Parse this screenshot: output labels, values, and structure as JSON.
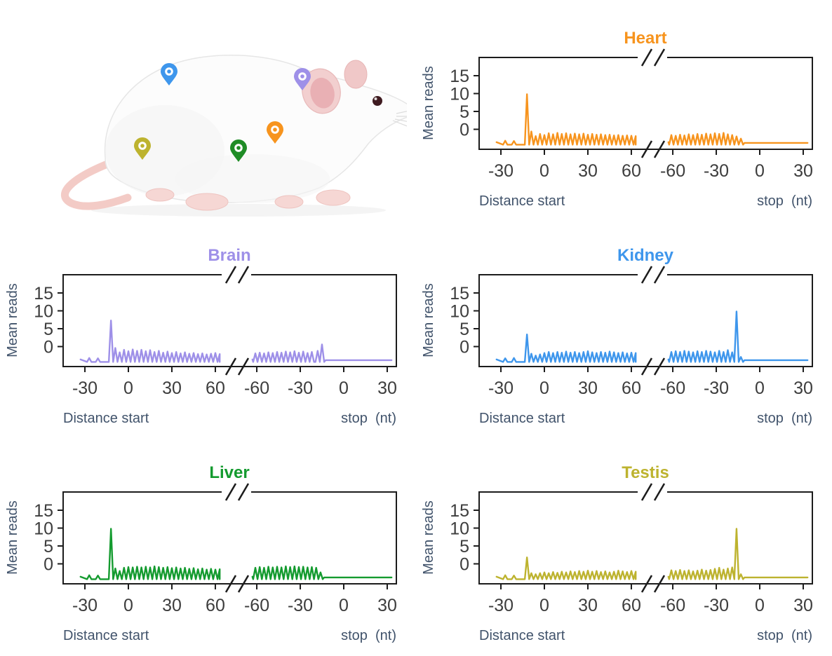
{
  "figure": {
    "description": "White rat with colored organ location pins",
    "pins": [
      {
        "organ": "Kidney",
        "color": "#3E96EC"
      },
      {
        "organ": "Brain",
        "color": "#9E90E8"
      },
      {
        "organ": "Heart",
        "color": "#F7941E"
      },
      {
        "organ": "Liver",
        "color": "#1F8C26"
      },
      {
        "organ": "Testis",
        "color": "#BDB32F"
      }
    ]
  },
  "axes": {
    "ylabel": "Mean reads",
    "yticks": [
      15,
      10,
      5,
      0
    ],
    "ylim": [
      -5.5,
      20
    ],
    "xlabel_left": "Distance start",
    "xlabel_right": "stop  (nt)",
    "panel_start": {
      "xticks": [
        -30,
        0,
        30,
        60
      ],
      "xrange": [
        -33,
        63
      ]
    },
    "panel_stop": {
      "xticks": [
        -60,
        -30,
        0,
        30
      ],
      "xrange": [
        -63,
        33
      ]
    },
    "grid": false
  },
  "chart_data": [
    {
      "id": "heart",
      "title": "Heart",
      "color": "#F7941E",
      "type": "line",
      "start": {
        "xrange": [
          -33,
          63
        ],
        "baseline": -3.6,
        "trough": -4.3,
        "tail": -3.8,
        "peaks": [
          [
            -27,
            -3.2
          ],
          [
            -21,
            -3.3
          ],
          [
            -12,
            9.8
          ],
          [
            -9,
            -0.6
          ],
          [
            -6,
            -1.9
          ],
          [
            -3,
            -1.3
          ],
          [
            0,
            -1.6
          ],
          [
            3,
            -1.1
          ],
          [
            6,
            -1.4
          ],
          [
            9,
            -1.0
          ],
          [
            12,
            -1.3
          ],
          [
            15,
            -1.1
          ],
          [
            18,
            -1.4
          ],
          [
            21,
            -1.2
          ],
          [
            24,
            -1.4
          ],
          [
            27,
            -1.2
          ],
          [
            30,
            -1.5
          ],
          [
            33,
            -1.3
          ],
          [
            36,
            -1.5
          ],
          [
            39,
            -1.4
          ],
          [
            42,
            -1.6
          ],
          [
            45,
            -1.5
          ],
          [
            48,
            -1.7
          ],
          [
            51,
            -1.6
          ],
          [
            54,
            -1.8
          ],
          [
            57,
            -1.7
          ],
          [
            60,
            -1.8
          ],
          [
            63,
            -1.9
          ]
        ]
      },
      "stop": {
        "xrange": [
          -63,
          33
        ],
        "baseline": -3.6,
        "trough": -4.3,
        "tail": -3.8,
        "peaks": [
          [
            -61,
            -1.6
          ],
          [
            -58,
            -1.8
          ],
          [
            -55,
            -1.5
          ],
          [
            -52,
            -1.7
          ],
          [
            -49,
            -1.4
          ],
          [
            -46,
            -1.6
          ],
          [
            -43,
            -1.3
          ],
          [
            -40,
            -1.5
          ],
          [
            -37,
            -1.2
          ],
          [
            -34,
            -1.4
          ],
          [
            -31,
            -1.1
          ],
          [
            -28,
            -1.3
          ],
          [
            -25,
            -1.0
          ],
          [
            -22,
            -1.4
          ],
          [
            -19,
            -1.6
          ],
          [
            -16,
            -2.0
          ],
          [
            -13,
            -2.6
          ]
        ]
      }
    },
    {
      "id": "brain",
      "title": "Brain",
      "color": "#9E90E8",
      "type": "line",
      "start": {
        "xrange": [
          -33,
          63
        ],
        "baseline": -3.6,
        "trough": -4.3,
        "tail": -3.8,
        "peaks": [
          [
            -27,
            -3.2
          ],
          [
            -21,
            -3.3
          ],
          [
            -12,
            7.3
          ],
          [
            -9,
            -0.4
          ],
          [
            -6,
            -1.6
          ],
          [
            -3,
            -0.9
          ],
          [
            0,
            -1.3
          ],
          [
            3,
            -0.8
          ],
          [
            6,
            -1.2
          ],
          [
            9,
            -0.9
          ],
          [
            12,
            -1.3
          ],
          [
            15,
            -1.0
          ],
          [
            18,
            -1.5
          ],
          [
            21,
            -1.2
          ],
          [
            24,
            -1.7
          ],
          [
            27,
            -1.4
          ],
          [
            30,
            -1.8
          ],
          [
            33,
            -1.5
          ],
          [
            36,
            -1.9
          ],
          [
            39,
            -1.6
          ],
          [
            42,
            -2.0
          ],
          [
            45,
            -1.8
          ],
          [
            48,
            -2.1
          ],
          [
            51,
            -1.9
          ],
          [
            54,
            -2.2
          ],
          [
            57,
            -2.0
          ],
          [
            60,
            -1.8
          ],
          [
            63,
            -2.1
          ]
        ]
      },
      "stop": {
        "xrange": [
          -63,
          33
        ],
        "baseline": -3.6,
        "trough": -4.3,
        "tail": -3.8,
        "peaks": [
          [
            -61,
            -1.9
          ],
          [
            -58,
            -1.7
          ],
          [
            -55,
            -1.9
          ],
          [
            -52,
            -1.6
          ],
          [
            -49,
            -1.8
          ],
          [
            -46,
            -1.5
          ],
          [
            -43,
            -1.7
          ],
          [
            -40,
            -1.4
          ],
          [
            -37,
            -1.6
          ],
          [
            -34,
            -1.3
          ],
          [
            -31,
            -1.7
          ],
          [
            -28,
            -1.4
          ],
          [
            -25,
            -1.8
          ],
          [
            -22,
            -1.5
          ],
          [
            -18,
            -1.2
          ],
          [
            -15,
            0.6
          ]
        ]
      }
    },
    {
      "id": "kidney",
      "title": "Kidney",
      "color": "#3E96EC",
      "type": "line",
      "start": {
        "xrange": [
          -33,
          63
        ],
        "baseline": -3.6,
        "trough": -4.3,
        "tail": -3.8,
        "peaks": [
          [
            -27,
            -3.3
          ],
          [
            -21,
            -3.2
          ],
          [
            -12,
            3.4
          ],
          [
            -9,
            -2.0
          ],
          [
            -6,
            -2.5
          ],
          [
            -3,
            -2.2
          ],
          [
            0,
            -1.8
          ],
          [
            3,
            -1.5
          ],
          [
            6,
            -1.8
          ],
          [
            9,
            -1.5
          ],
          [
            12,
            -1.7
          ],
          [
            15,
            -1.4
          ],
          [
            18,
            -1.7
          ],
          [
            21,
            -1.5
          ],
          [
            24,
            -1.8
          ],
          [
            27,
            -1.5
          ],
          [
            30,
            -1.3
          ],
          [
            33,
            -1.6
          ],
          [
            36,
            -1.8
          ],
          [
            39,
            -1.5
          ],
          [
            42,
            -1.7
          ],
          [
            45,
            -1.4
          ],
          [
            48,
            -1.6
          ],
          [
            51,
            -1.8
          ],
          [
            54,
            -1.6
          ],
          [
            57,
            -1.9
          ],
          [
            60,
            -1.7
          ],
          [
            63,
            -1.8
          ]
        ]
      },
      "stop": {
        "xrange": [
          -63,
          33
        ],
        "baseline": -3.6,
        "trough": -4.3,
        "tail": -3.8,
        "peaks": [
          [
            -61,
            -1.5
          ],
          [
            -58,
            -1.3
          ],
          [
            -55,
            -1.5
          ],
          [
            -52,
            -1.2
          ],
          [
            -49,
            -1.4
          ],
          [
            -46,
            -1.6
          ],
          [
            -43,
            -1.3
          ],
          [
            -40,
            -1.5
          ],
          [
            -37,
            -1.2
          ],
          [
            -34,
            -1.4
          ],
          [
            -31,
            -1.6
          ],
          [
            -28,
            -1.2
          ],
          [
            -25,
            -1.5
          ],
          [
            -22,
            -1.0
          ],
          [
            -19,
            -1.6
          ],
          [
            -16,
            9.8
          ],
          [
            -13,
            -2.9
          ]
        ]
      }
    },
    {
      "id": "liver",
      "title": "Liver",
      "color": "#149B2F",
      "type": "line",
      "start": {
        "xrange": [
          -33,
          63
        ],
        "baseline": -3.6,
        "trough": -4.3,
        "tail": -3.8,
        "peaks": [
          [
            -27,
            -3.2
          ],
          [
            -21,
            -3.3
          ],
          [
            -12,
            9.8
          ],
          [
            -9,
            -1.3
          ],
          [
            -6,
            -2.0
          ],
          [
            -3,
            -1.1
          ],
          [
            0,
            -0.9
          ],
          [
            3,
            -1.0
          ],
          [
            6,
            -0.8
          ],
          [
            9,
            -1.0
          ],
          [
            12,
            -0.8
          ],
          [
            15,
            -1.0
          ],
          [
            18,
            -0.7
          ],
          [
            21,
            -0.9
          ],
          [
            24,
            -1.1
          ],
          [
            27,
            -0.9
          ],
          [
            30,
            -1.2
          ],
          [
            33,
            -1.0
          ],
          [
            36,
            -1.3
          ],
          [
            39,
            -1.1
          ],
          [
            42,
            -1.4
          ],
          [
            45,
            -1.2
          ],
          [
            48,
            -1.5
          ],
          [
            51,
            -1.3
          ],
          [
            54,
            -1.6
          ],
          [
            57,
            -1.4
          ],
          [
            60,
            -1.6
          ],
          [
            63,
            -1.5
          ]
        ]
      },
      "stop": {
        "xrange": [
          -63,
          33
        ],
        "baseline": -3.6,
        "trough": -4.3,
        "tail": -3.8,
        "peaks": [
          [
            -61,
            -1.1
          ],
          [
            -58,
            -0.9
          ],
          [
            -55,
            -1.1
          ],
          [
            -52,
            -0.8
          ],
          [
            -49,
            -1.0
          ],
          [
            -46,
            -0.8
          ],
          [
            -43,
            -1.0
          ],
          [
            -40,
            -0.7
          ],
          [
            -37,
            -0.9
          ],
          [
            -34,
            -0.7
          ],
          [
            -31,
            -0.9
          ],
          [
            -28,
            -0.8
          ],
          [
            -25,
            -1.0
          ],
          [
            -22,
            -0.9
          ],
          [
            -19,
            -1.1
          ],
          [
            -16,
            -2.4
          ]
        ]
      }
    },
    {
      "id": "testis",
      "title": "Testis",
      "color": "#BDB32F",
      "type": "line",
      "start": {
        "xrange": [
          -33,
          63
        ],
        "baseline": -3.6,
        "trough": -4.3,
        "tail": -3.8,
        "peaks": [
          [
            -27,
            -3.2
          ],
          [
            -21,
            -3.3
          ],
          [
            -12,
            1.8
          ],
          [
            -9,
            -2.6
          ],
          [
            -6,
            -2.9
          ],
          [
            -3,
            -2.6
          ],
          [
            0,
            -2.4
          ],
          [
            3,
            -2.6
          ],
          [
            6,
            -2.3
          ],
          [
            9,
            -2.5
          ],
          [
            12,
            -2.2
          ],
          [
            15,
            -2.4
          ],
          [
            18,
            -2.1
          ],
          [
            21,
            -2.3
          ],
          [
            24,
            -2.0
          ],
          [
            27,
            -2.2
          ],
          [
            30,
            -1.9
          ],
          [
            33,
            -2.2
          ],
          [
            36,
            -2.0
          ],
          [
            39,
            -2.3
          ],
          [
            42,
            -2.1
          ],
          [
            45,
            -2.4
          ],
          [
            48,
            -2.2
          ],
          [
            51,
            -1.9
          ],
          [
            54,
            -2.1
          ],
          [
            57,
            -2.3
          ],
          [
            60,
            -2.0
          ],
          [
            63,
            -2.2
          ]
        ]
      },
      "stop": {
        "xrange": [
          -63,
          33
        ],
        "baseline": -3.6,
        "trough": -4.3,
        "tail": -3.8,
        "peaks": [
          [
            -61,
            -1.8
          ],
          [
            -58,
            -2.0
          ],
          [
            -55,
            -1.7
          ],
          [
            -52,
            -2.0
          ],
          [
            -49,
            -1.8
          ],
          [
            -46,
            -2.1
          ],
          [
            -43,
            -1.9
          ],
          [
            -40,
            -1.6
          ],
          [
            -37,
            -1.9
          ],
          [
            -34,
            -1.7
          ],
          [
            -31,
            -1.4
          ],
          [
            -28,
            -1.1
          ],
          [
            -25,
            -1.6
          ],
          [
            -22,
            -1.3
          ],
          [
            -19,
            -1.0
          ],
          [
            -16,
            9.8
          ],
          [
            -13,
            -2.9
          ]
        ]
      }
    }
  ]
}
